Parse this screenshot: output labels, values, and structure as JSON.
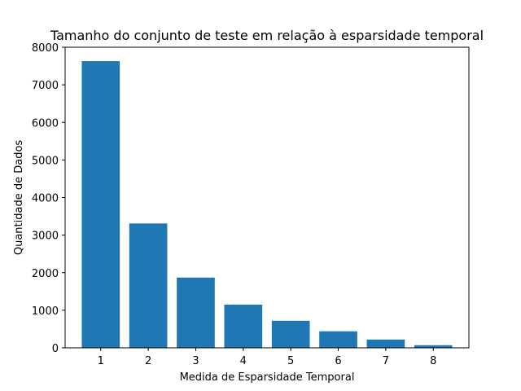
{
  "chart_data": {
    "type": "bar",
    "title": "Tamanho do conjunto de teste em relação à esparsidade temporal",
    "xlabel": "Medida de Esparsidade Temporal",
    "ylabel": "Quantidade de Dados",
    "categories": [
      "1",
      "2",
      "3",
      "4",
      "5",
      "6",
      "7",
      "8"
    ],
    "values": [
      7630,
      3310,
      1870,
      1150,
      720,
      440,
      220,
      70
    ],
    "ylim": [
      0,
      8000
    ],
    "yticks": [
      "0",
      "1000",
      "2000",
      "3000",
      "4000",
      "5000",
      "6000",
      "7000",
      "8000"
    ],
    "yticks_values": [
      0,
      1000,
      2000,
      3000,
      4000,
      5000,
      6000,
      7000,
      8000
    ],
    "grid": false,
    "legend": "none",
    "bar_color": "#1f77b4"
  }
}
